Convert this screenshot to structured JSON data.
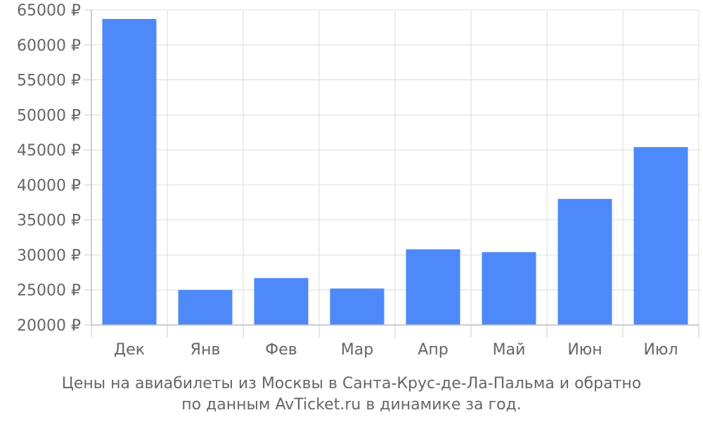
{
  "chart_data": {
    "type": "bar",
    "categories": [
      "Дек",
      "Янв",
      "Фев",
      "Мар",
      "Апр",
      "Май",
      "Июн",
      "Июл"
    ],
    "values": [
      63700,
      25000,
      26700,
      25200,
      30800,
      30400,
      38000,
      45400
    ],
    "ylim": [
      20000,
      65000
    ],
    "yticks": [
      20000,
      25000,
      30000,
      35000,
      40000,
      45000,
      50000,
      55000,
      60000,
      65000
    ],
    "ytick_labels": [
      "20000 ₽",
      "25000 ₽",
      "30000 ₽",
      "35000 ₽",
      "40000 ₽",
      "45000 ₽",
      "50000 ₽",
      "55000 ₽",
      "60000 ₽",
      "65000 ₽"
    ],
    "bar_color": "#4d89f9",
    "grid": true
  },
  "caption": {
    "line1": "Цены на авиабилеты из Москвы в Санта-Крус-де-Ла-Пальма и обратно",
    "line2": "по данным AvTicket.ru в динамике за год."
  }
}
